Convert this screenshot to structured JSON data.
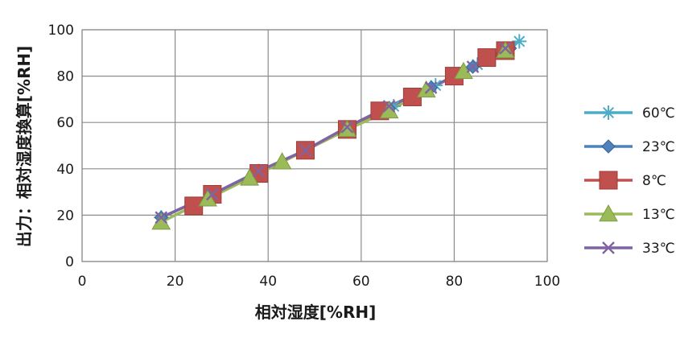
{
  "chart_data": {
    "type": "line",
    "title": "",
    "xlabel": "相対湿度[%RH]",
    "ylabel": "出力：相対湿度換算[%RH]",
    "xlim": [
      0,
      100
    ],
    "ylim": [
      0,
      100
    ],
    "x_ticks": [
      "0",
      "20",
      "40",
      "60",
      "80",
      "100"
    ],
    "y_ticks": [
      "0",
      "20",
      "40",
      "60",
      "80",
      "100"
    ],
    "grid": true,
    "legend_position": "right",
    "series": [
      {
        "name": "60℃",
        "color": "#4bacc6",
        "marker": "star",
        "points": [
          [
            17,
            19
          ],
          [
            28,
            29
          ],
          [
            38,
            39
          ],
          [
            48,
            48
          ],
          [
            57,
            57
          ],
          [
            67,
            67
          ],
          [
            76,
            76
          ],
          [
            85,
            85
          ],
          [
            94,
            95
          ]
        ]
      },
      {
        "name": "23℃",
        "color": "#4f81bd",
        "marker": "diamond",
        "points": [
          [
            17,
            19
          ],
          [
            28,
            29
          ],
          [
            38,
            38
          ],
          [
            48,
            48
          ],
          [
            57,
            58
          ],
          [
            66,
            66
          ],
          [
            75,
            75
          ],
          [
            84,
            84
          ],
          [
            92,
            92
          ]
        ]
      },
      {
        "name": "8℃",
        "color": "#c0504d",
        "marker": "square",
        "points": [
          [
            24,
            24
          ],
          [
            28,
            29
          ],
          [
            38,
            38
          ],
          [
            48,
            48
          ],
          [
            57,
            57
          ],
          [
            64,
            65
          ],
          [
            71,
            71
          ],
          [
            80,
            80
          ],
          [
            87,
            88
          ],
          [
            91,
            91
          ]
        ]
      },
      {
        "name": "13℃",
        "color": "#9bbb59",
        "marker": "triangle",
        "points": [
          [
            17,
            17
          ],
          [
            27,
            27
          ],
          [
            36,
            36
          ],
          [
            43,
            43
          ],
          [
            57,
            57
          ],
          [
            66,
            65
          ],
          [
            74,
            74
          ],
          [
            82,
            82
          ],
          [
            91,
            91
          ]
        ]
      },
      {
        "name": "33℃",
        "color": "#8064a2",
        "marker": "x",
        "points": [
          [
            17,
            19
          ],
          [
            28,
            29
          ],
          [
            38,
            39
          ],
          [
            48,
            48
          ],
          [
            57,
            58
          ],
          [
            66,
            67
          ],
          [
            75,
            75
          ],
          [
            84,
            84
          ],
          [
            91,
            92
          ]
        ]
      }
    ]
  }
}
